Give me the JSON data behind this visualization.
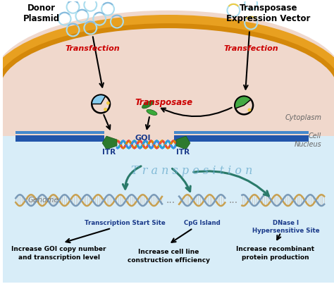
{
  "bg_color": "#ffffff",
  "cytoplasm_color": "#f0d8cc",
  "nucleus_color": "#c5dff0",
  "nucleus_bottom_color": "#d8edf8",
  "membrane_outer_color": "#e8a020",
  "membrane_inner_color": "#d4880a",
  "nuclear_membrane_color1": "#2255aa",
  "nuclear_membrane_color2": "#4488cc",
  "donor_plasmid_text": "Donor\nPlasmid",
  "transposase_vector_text": "Transposase\nExpression Vector",
  "transfection_text": "Transfection",
  "transposase_text": "Transposase",
  "goi_text": "GOI",
  "itr_left_text": "ITR",
  "itr_right_text": "ITR",
  "transposition_text": "T r a n s p o s i t i o n",
  "genome_text": "Genome",
  "cytoplasm_label": "Cytoplasm",
  "nucleus_label": "Cell\nNucleus",
  "transcription_text": "Transcription Start Site",
  "cpg_text": "CpG Island",
  "dnase_text": "DNase I\nHypersensitive Site",
  "bottom1_text": "Increase GOI copy number\nand transcription level",
  "bottom2_text": "Increase cell line\nconstruction efficiency",
  "bottom3_text": "Increase recombinant\nprotein production",
  "red_color": "#cc0000",
  "blue_color": "#1a3a8a",
  "dark_navy": "#0a1a5a",
  "green_color": "#2d7a2d",
  "green_light": "#3aaa3a",
  "arrow_color": "#111111",
  "teal_arrow": "#2a7a6a",
  "dna_gold": "#c8a050",
  "dna_blue": "#7a9ab8",
  "plasmid_blue": "#88ccee",
  "plasmid_yellow": "#eecc44",
  "plasmid_green": "#44aa44"
}
